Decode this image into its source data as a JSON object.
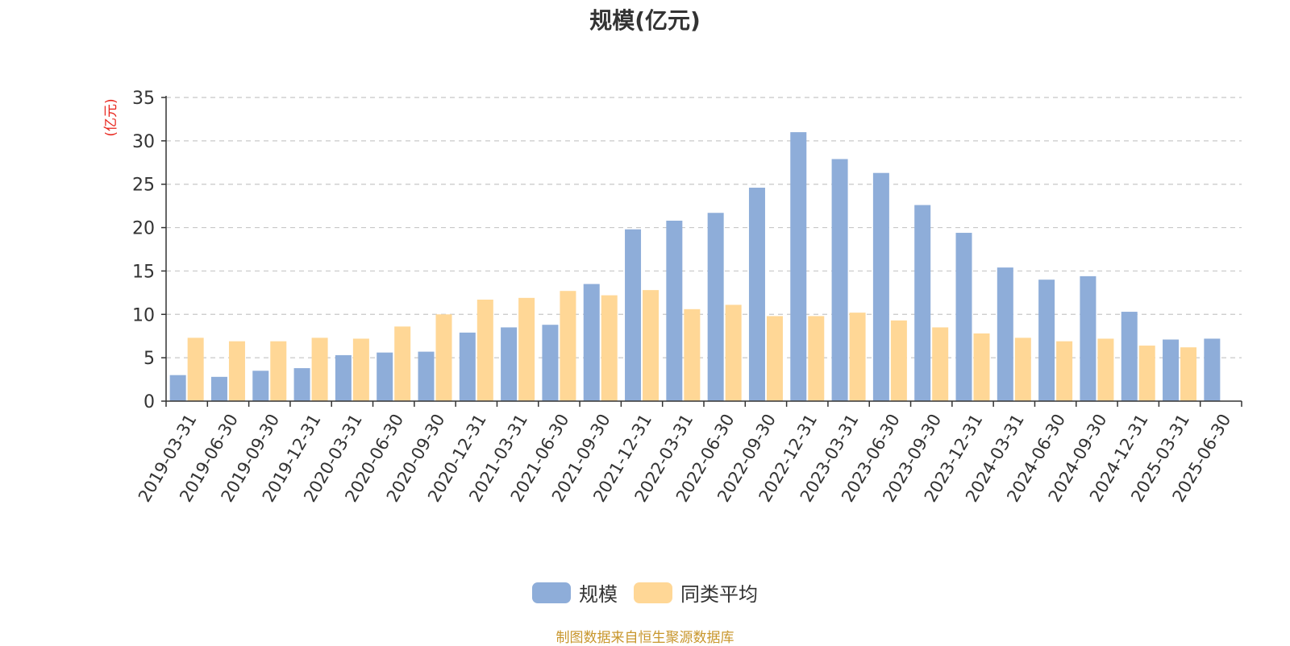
{
  "colors": {
    "primary": "#8eadd9",
    "average": "#ffd796",
    "unit_label": "#e8251c",
    "source_note": "#c8962c"
  },
  "source_note": "制图数据来自恒生聚源数据库",
  "chart_data": {
    "type": "bar",
    "title": "规模(亿元)",
    "ylabel": "(亿元)",
    "xlabel": "",
    "ylim": [
      0,
      35
    ],
    "yticks": [
      0,
      5,
      10,
      15,
      20,
      25,
      30,
      35
    ],
    "grid": true,
    "legend_position": "bottom",
    "categories": [
      "2019-03-31",
      "2019-06-30",
      "2019-09-30",
      "2019-12-31",
      "2020-03-31",
      "2020-06-30",
      "2020-09-30",
      "2020-12-31",
      "2021-03-31",
      "2021-06-30",
      "2021-09-30",
      "2021-12-31",
      "2022-03-31",
      "2022-06-30",
      "2022-09-30",
      "2022-12-31",
      "2023-03-31",
      "2023-06-30",
      "2023-09-30",
      "2023-12-31",
      "2024-03-31",
      "2024-06-30",
      "2024-09-30",
      "2024-12-31",
      "2025-03-31",
      "2025-06-30"
    ],
    "series": [
      {
        "name": "规模",
        "color": "#8eadd9",
        "values": [
          3.0,
          2.8,
          3.5,
          3.8,
          5.3,
          5.6,
          5.7,
          7.9,
          8.5,
          8.8,
          13.5,
          19.8,
          20.8,
          21.7,
          24.6,
          31.0,
          27.9,
          26.3,
          22.6,
          19.4,
          15.4,
          14.0,
          14.4,
          10.3,
          7.1,
          7.2
        ]
      },
      {
        "name": "同类平均",
        "color": "#ffd796",
        "values": [
          7.3,
          6.9,
          6.9,
          7.3,
          7.2,
          8.6,
          10.0,
          11.7,
          11.9,
          12.7,
          12.2,
          12.8,
          10.6,
          11.1,
          9.8,
          9.8,
          10.2,
          9.3,
          8.5,
          7.8,
          7.3,
          6.9,
          7.2,
          6.4,
          6.2,
          null
        ]
      }
    ]
  }
}
